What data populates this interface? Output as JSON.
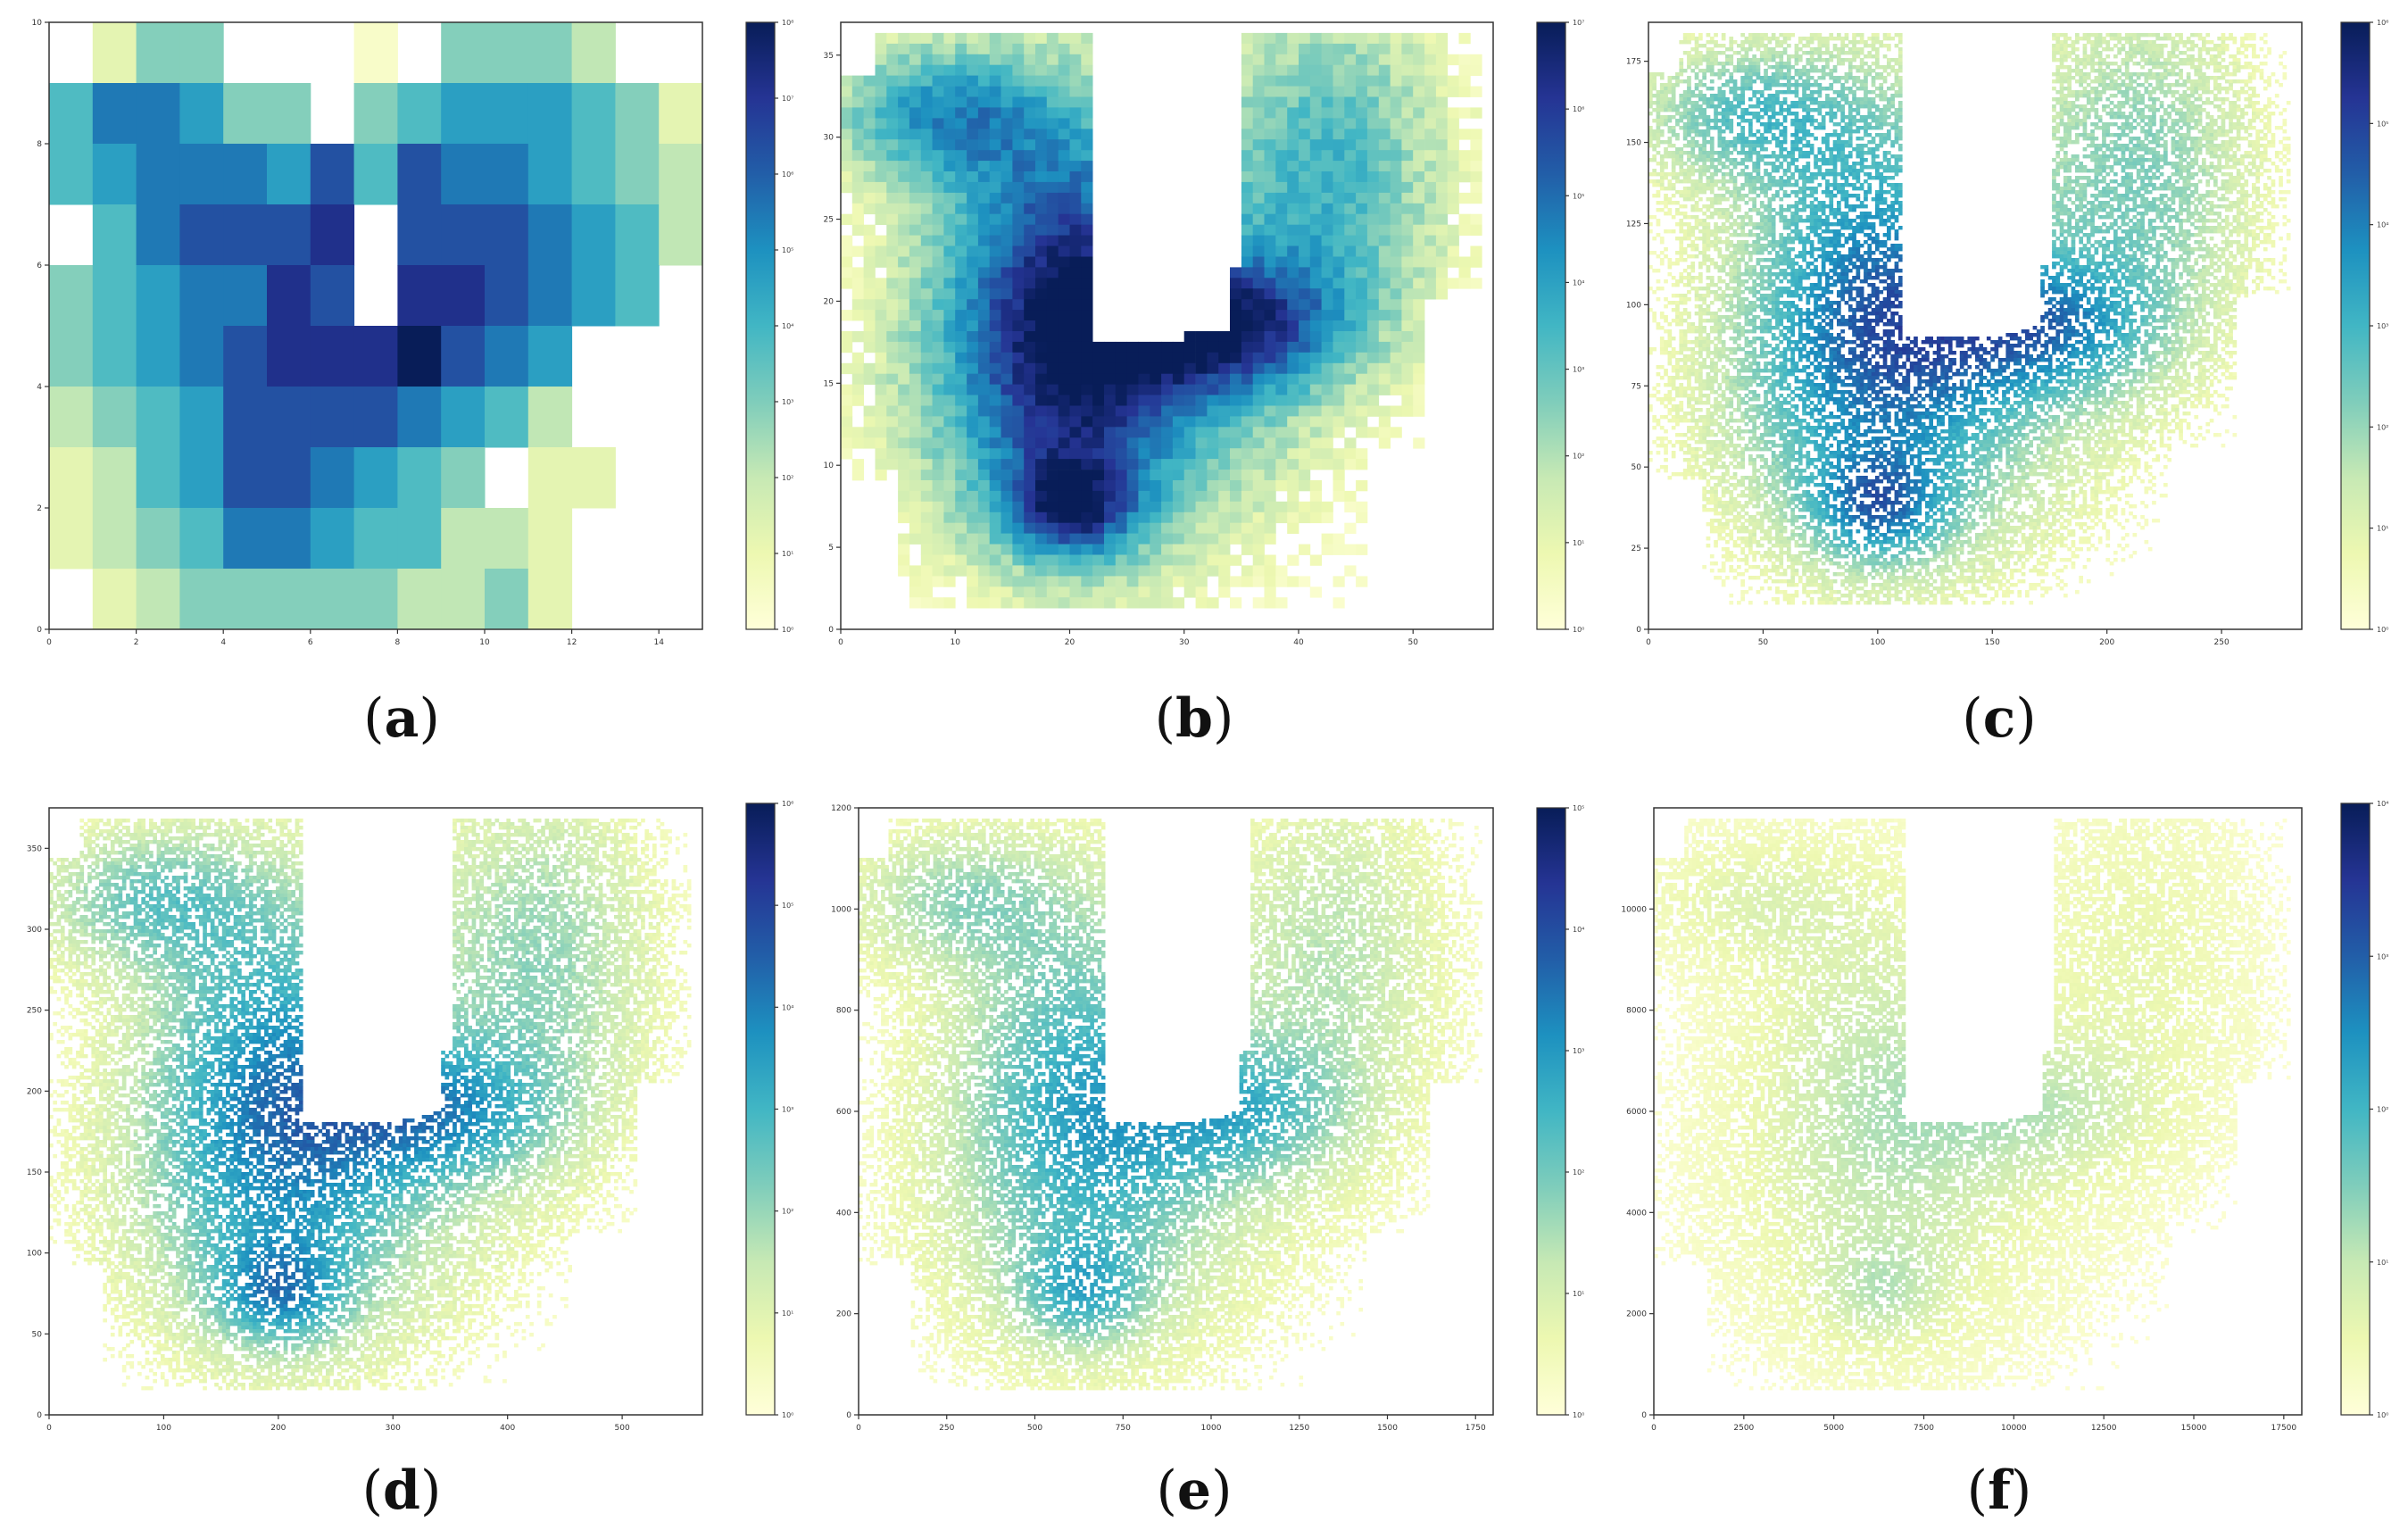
{
  "colormap": [
    "#ffffd9",
    "#edf8b1",
    "#c7e9b4",
    "#7fcdbb",
    "#41b6c4",
    "#1d91c0",
    "#225ea8",
    "#253494",
    "#081d58"
  ],
  "chart_data": [
    {
      "id": "a",
      "type": "heatmap",
      "panel_label": "a",
      "xlim": [
        0,
        15
      ],
      "ylim": [
        0,
        10
      ],
      "x_ticks": [
        0,
        2,
        4,
        6,
        8,
        10,
        12,
        14
      ],
      "y_ticks": [
        0,
        2,
        4,
        6,
        8,
        10
      ],
      "colorbar": {
        "scale": "log",
        "ticks": [
          "10⁰",
          "10¹",
          "10²",
          "10³",
          "10⁴",
          "10⁵",
          "10⁶",
          "10⁷",
          "10⁸"
        ]
      },
      "grid_cols": 15,
      "grid_rows": 10,
      "cell_levels": [
        [
          -1,
          1,
          3,
          3,
          -1,
          -1,
          -1,
          0,
          -1,
          3,
          3,
          3,
          2,
          -1,
          -1
        ],
        [
          4,
          6,
          6,
          5,
          3,
          3,
          -1,
          3,
          4,
          5,
          5,
          5,
          4,
          3,
          1
        ],
        [
          4,
          5,
          6,
          6,
          6,
          5,
          7,
          4,
          7,
          6,
          6,
          5,
          4,
          3,
          2
        ],
        [
          -1,
          4,
          6,
          7,
          7,
          7,
          8,
          -1,
          7,
          7,
          7,
          6,
          5,
          4,
          2
        ],
        [
          3,
          4,
          5,
          6,
          6,
          8,
          7,
          -1,
          8,
          8,
          7,
          6,
          5,
          4,
          -1
        ],
        [
          3,
          4,
          5,
          6,
          7,
          8,
          8,
          8,
          9,
          7,
          6,
          5,
          -1,
          -1,
          -1
        ],
        [
          2,
          3,
          4,
          5,
          7,
          7,
          7,
          7,
          6,
          5,
          4,
          2,
          -1,
          -1,
          -1
        ],
        [
          1,
          2,
          4,
          5,
          7,
          7,
          6,
          5,
          4,
          3,
          -1,
          1,
          1,
          -1,
          -1
        ],
        [
          1,
          2,
          3,
          4,
          6,
          6,
          5,
          4,
          4,
          2,
          2,
          1,
          -1,
          -1,
          -1
        ],
        [
          -1,
          1,
          2,
          3,
          3,
          3,
          3,
          3,
          2,
          2,
          3,
          1,
          -1,
          -1,
          -1
        ]
      ]
    },
    {
      "id": "b",
      "type": "heatmap",
      "panel_label": "b",
      "xlim": [
        0,
        57
      ],
      "ylim": [
        0,
        37
      ],
      "x_ticks": [
        0,
        10,
        20,
        30,
        40,
        50
      ],
      "y_ticks": [
        0,
        5,
        10,
        15,
        20,
        25,
        30,
        35
      ],
      "colorbar": {
        "scale": "log",
        "ticks": [
          "10⁰",
          "10¹",
          "10²",
          "10³",
          "10⁴",
          "10⁵",
          "10⁶",
          "10⁷"
        ]
      },
      "intensity": 0.78,
      "resolution": 57
    },
    {
      "id": "c",
      "type": "heatmap",
      "panel_label": "c",
      "xlim": [
        0,
        285
      ],
      "ylim": [
        0,
        187
      ],
      "x_ticks": [
        0,
        50,
        100,
        150,
        200,
        250
      ],
      "y_ticks": [
        0,
        25,
        50,
        75,
        100,
        125,
        150,
        175
      ],
      "colorbar": {
        "scale": "log",
        "ticks": [
          "10⁰",
          "10¹",
          "10²",
          "10³",
          "10⁴",
          "10⁵",
          "10⁶"
        ]
      },
      "intensity": 0.55,
      "resolution": 170
    },
    {
      "id": "d",
      "type": "heatmap",
      "panel_label": "d",
      "xlim": [
        0,
        570
      ],
      "ylim": [
        0,
        375
      ],
      "x_ticks": [
        0,
        100,
        200,
        300,
        400,
        500
      ],
      "y_ticks": [
        0,
        50,
        100,
        150,
        200,
        250,
        300,
        350
      ],
      "colorbar": {
        "scale": "log",
        "ticks": [
          "10⁰",
          "10¹",
          "10²",
          "10³",
          "10⁴",
          "10⁵",
          "10⁶"
        ]
      },
      "intensity": 0.5,
      "resolution": 170
    },
    {
      "id": "e",
      "type": "heatmap",
      "panel_label": "e",
      "xlim": [
        0,
        1800
      ],
      "ylim": [
        0,
        1200
      ],
      "x_ticks": [
        0,
        250,
        500,
        750,
        1000,
        1250,
        1500,
        1750
      ],
      "y_ticks": [
        0,
        200,
        400,
        600,
        800,
        1000,
        1200
      ],
      "colorbar": {
        "scale": "log",
        "ticks": [
          "10⁰",
          "10¹",
          "10²",
          "10³",
          "10⁴",
          "10⁵"
        ]
      },
      "intensity": 0.4,
      "resolution": 170
    },
    {
      "id": "f",
      "type": "heatmap",
      "panel_label": "f",
      "xlim": [
        0,
        18000
      ],
      "ylim": [
        0,
        12000
      ],
      "x_ticks": [
        0,
        2500,
        5000,
        7500,
        10000,
        12500,
        15000,
        17500
      ],
      "y_ticks": [
        0,
        2000,
        4000,
        6000,
        8000,
        10000
      ],
      "colorbar": {
        "scale": "log",
        "ticks": [
          "10⁰",
          "10¹",
          "10²",
          "10³",
          "10⁴"
        ]
      },
      "intensity": 0.2,
      "resolution": 170
    }
  ]
}
